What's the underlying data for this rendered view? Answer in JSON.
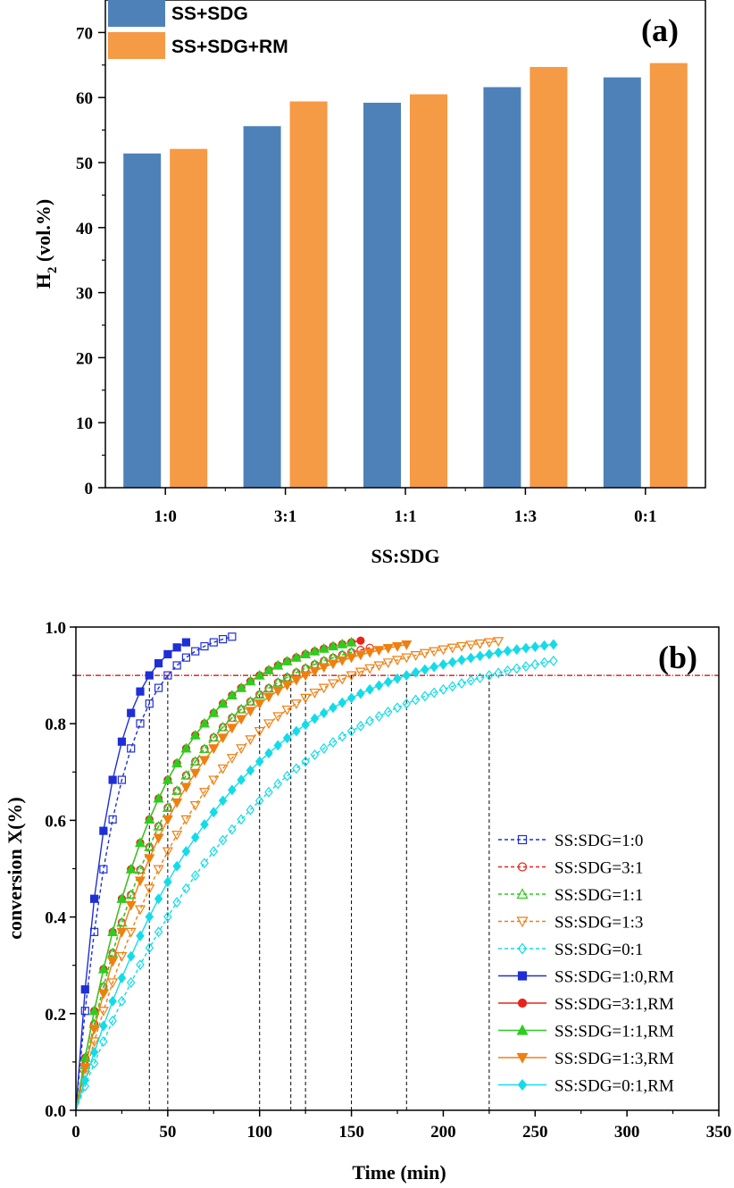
{
  "chart_data": [
    {
      "type": "bar",
      "panel_label": "(a)",
      "xlabel": "SS:SDG",
      "ylabel_main": "H",
      "ylabel_sub": "2",
      "ylabel_rest": " (vol.%)",
      "ylim": [
        0,
        75
      ],
      "yticks": [
        0,
        10,
        20,
        30,
        40,
        50,
        60,
        70
      ],
      "categories": [
        "1:0",
        "3:1",
        "1:1",
        "1:3",
        "0:1"
      ],
      "series": [
        {
          "name": "SS+SDG",
          "color": "#4f81b9",
          "values": [
            51.4,
            55.6,
            59.2,
            61.6,
            63.1
          ]
        },
        {
          "name": "SS+SDG+RM",
          "color": "#f59a45",
          "values": [
            52.1,
            59.4,
            60.5,
            64.7,
            65.3
          ]
        }
      ]
    },
    {
      "type": "line",
      "panel_label": "(b)",
      "xlabel": "Time (min)",
      "ylabel": "conversion X(%)",
      "xlim": [
        0,
        350
      ],
      "ylim": [
        0,
        1.0
      ],
      "xticks": [
        0,
        50,
        100,
        150,
        200,
        250,
        300,
        350
      ],
      "yticks": [
        "0.0",
        "0.2",
        "0.4",
        "0.6",
        "0.8",
        "1.0"
      ],
      "threshold": 0.9,
      "threshold_color": "#cc0000",
      "vlines": [
        40,
        50,
        100,
        117,
        125,
        150,
        180,
        225
      ],
      "series": [
        {
          "name": "SS:SDG=1:0",
          "color": "#1f2fd6",
          "marker": "square",
          "filled": false,
          "dashed": true,
          "t90": 50,
          "t_end": 85,
          "step": 5
        },
        {
          "name": "SS:SDG=3:1",
          "color": "#e8231a",
          "marker": "circle",
          "filled": false,
          "dashed": true,
          "t90": 117,
          "t_end": 160,
          "step": 5
        },
        {
          "name": "SS:SDG=1:1",
          "color": "#2ecc1f",
          "marker": "triangle-up",
          "filled": false,
          "dashed": true,
          "t90": 117,
          "t_end": 150,
          "step": 5
        },
        {
          "name": "SS:SDG=1:3",
          "color": "#f07f10",
          "marker": "triangle-down",
          "filled": false,
          "dashed": true,
          "t90": 150,
          "t_end": 230,
          "step": 5
        },
        {
          "name": "SS:SDG=0:1",
          "color": "#14dbe8",
          "marker": "diamond",
          "filled": false,
          "dashed": true,
          "t90": 225,
          "t_end": 260,
          "step": 5
        },
        {
          "name": "SS:SDG=1:0,RM",
          "color": "#1f2fd6",
          "marker": "square",
          "filled": true,
          "dashed": false,
          "t90": 40,
          "t_end": 60,
          "step": 5
        },
        {
          "name": "SS:SDG=3:1,RM",
          "color": "#e8231a",
          "marker": "circle",
          "filled": true,
          "dashed": false,
          "t90": 100,
          "t_end": 155,
          "step": 5
        },
        {
          "name": "SS:SDG=1:1,RM",
          "color": "#2ecc1f",
          "marker": "triangle-up",
          "filled": true,
          "dashed": false,
          "t90": 100,
          "t_end": 150,
          "step": 5
        },
        {
          "name": "SS:SDG=1:3,RM",
          "color": "#f07f10",
          "marker": "triangle-down",
          "filled": true,
          "dashed": false,
          "t90": 125,
          "t_end": 180,
          "step": 5
        },
        {
          "name": "SS:SDG=0:1,RM",
          "color": "#14dbe8",
          "marker": "diamond",
          "filled": true,
          "dashed": false,
          "t90": 180,
          "t_end": 260,
          "step": 5
        }
      ]
    }
  ]
}
